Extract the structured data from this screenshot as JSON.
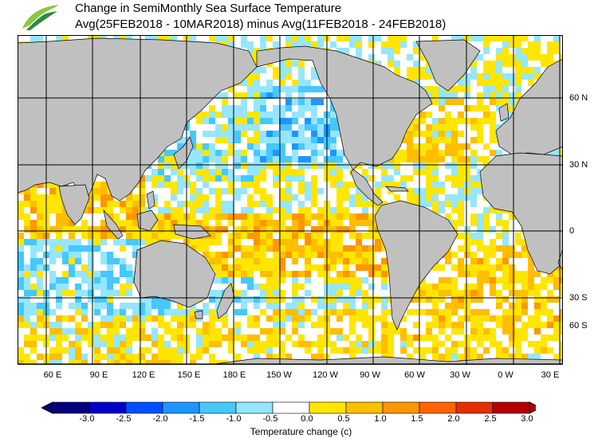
{
  "header": {
    "title": "Change in SemiMonthly Sea Surface Temperature",
    "subtitle": "Avg(25FEB2018 - 10MAR2018) minus Avg(11FEB2018 - 24FEB2018)"
  },
  "logo": {
    "icon": "leaf-logo-icon",
    "colors": [
      "#2e8b3c",
      "#8cc63f"
    ]
  },
  "map": {
    "ocean_color": "#ffffff",
    "land_color": "#c0c0c0",
    "missing_color": "#d8d8d8",
    "lat_labels": [
      "60 N",
      "30 N",
      "0",
      "30 S",
      "60 S"
    ],
    "lon_labels": [
      "60 E",
      "90 E",
      "120 E",
      "150 E",
      "180 E",
      "150 W",
      "120 W",
      "90 W",
      "60 W",
      "30 W",
      "0 W",
      "30 E"
    ]
  },
  "colorbar": {
    "label": "Temperature change  (c)",
    "ticks": [
      "-3.0",
      "-2.5",
      "-2.0",
      "-1.5",
      "-1.0",
      "-0.5",
      "0.0",
      "0.5",
      "1.0",
      "1.5",
      "2.0",
      "2.5",
      "3.0"
    ],
    "colors": [
      "#00007f",
      "#0000c8",
      "#0050ff",
      "#1e96ff",
      "#46c8ff",
      "#96e6ff",
      "#ffffff",
      "#ffe600",
      "#ffbe00",
      "#ff9600",
      "#ff6400",
      "#e62d00",
      "#b40000"
    ]
  }
}
